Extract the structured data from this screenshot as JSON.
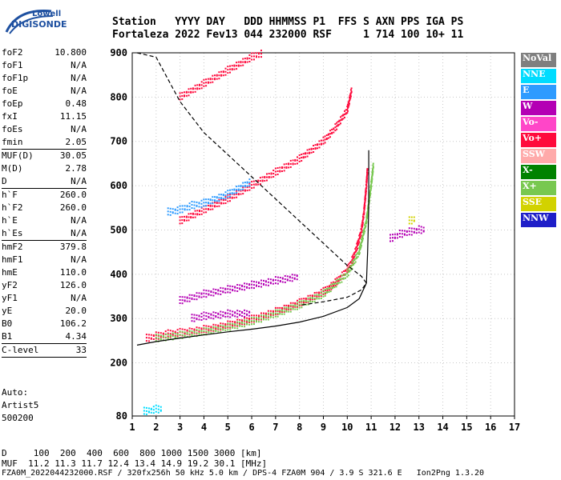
{
  "logo": {
    "line1": "Lowell",
    "line2": "DIGISONDE"
  },
  "header": {
    "line1": "Station   YYYY DAY   DDD HHMMSS P1  FFS S AXN PPS IGA PS",
    "line2": "Fortaleza 2022 Fev13 044 232000 RSF     1 714 100 10+ 11"
  },
  "params": [
    {
      "name": "foF2",
      "value": "10.800"
    },
    {
      "name": "foF1",
      "value": "N/A"
    },
    {
      "name": "foF1p",
      "value": "N/A"
    },
    {
      "name": "foE",
      "value": "N/A"
    },
    {
      "name": "foEp",
      "value": "0.48"
    },
    {
      "name": "fxI",
      "value": "11.15"
    },
    {
      "name": "foEs",
      "value": "N/A"
    },
    {
      "name": "fmin",
      "value": "2.05"
    },
    {
      "sep": true
    },
    {
      "name": "MUF(D)",
      "value": "30.05"
    },
    {
      "name": "M(D)",
      "value": "2.78"
    },
    {
      "name": "D",
      "value": "N/A"
    },
    {
      "sep": true
    },
    {
      "name": "h`F",
      "value": "260.0"
    },
    {
      "name": "h`F2",
      "value": "260.0"
    },
    {
      "name": "h`E",
      "value": "N/A"
    },
    {
      "name": "h`Es",
      "value": "N/A"
    },
    {
      "sep": true
    },
    {
      "name": "hmF2",
      "value": "379.8"
    },
    {
      "name": "hmF1",
      "value": "N/A"
    },
    {
      "name": "hmE",
      "value": "110.0"
    },
    {
      "name": "yF2",
      "value": "126.0"
    },
    {
      "name": "yF1",
      "value": "N/A"
    },
    {
      "name": "yE",
      "value": "20.0"
    },
    {
      "name": "B0",
      "value": "106.2"
    },
    {
      "name": "B1",
      "value": "4.34"
    },
    {
      "sep": true
    },
    {
      "name": "C-level",
      "value": "33"
    },
    {
      "sep": true
    }
  ],
  "auto": {
    "line1": "Auto:",
    "line2": "Artist5",
    "line3": "500200"
  },
  "legend": [
    {
      "label": "NoVal",
      "color": "#7f7f7f"
    },
    {
      "label": "NNE",
      "color": "#00dcff"
    },
    {
      "label": "E",
      "color": "#2d9bff"
    },
    {
      "label": "W",
      "color": "#b400b4"
    },
    {
      "label": "Vo-",
      "color": "#ff46c8"
    },
    {
      "label": "Vo+",
      "color": "#ff0a3c"
    },
    {
      "label": "SSW",
      "color": "#ffaaaa"
    },
    {
      "label": "X-",
      "color": "#008200"
    },
    {
      "label": "X+",
      "color": "#78c850"
    },
    {
      "label": "SSE",
      "color": "#d2d200"
    },
    {
      "label": "NNW",
      "color": "#1e1ec8"
    }
  ],
  "bottom": {
    "line1": "D     100  200  400  600  800 1000 1500 3000 [km]",
    "line2": "MUF  11.2 11.3 11.7 12.4 13.4 14.9 19.2 30.1 [MHz]",
    "line3": "FZA0M_2022044232000.RSF / 320fx256h 50 kHz 5.0 km / DPS-4 FZA0M 904 / 3.9 S 321.6 E   Ion2Png 1.3.20"
  },
  "chart_data": {
    "type": "scatter",
    "xlim": [
      1,
      17
    ],
    "ylim": [
      80,
      900
    ],
    "xticks": [
      "1",
      "2",
      "3",
      "4",
      "5",
      "6",
      "7",
      "8",
      "9",
      "10",
      "11",
      "12",
      "13",
      "14",
      "15",
      "16",
      "17"
    ],
    "yticks": [
      "80",
      "200",
      "300",
      "400",
      "500",
      "600",
      "700",
      "800",
      "900"
    ],
    "grid": true,
    "series": [
      {
        "kind": "trace",
        "color": "#ff0a3c",
        "points": [
          [
            1.6,
            255
          ],
          [
            2,
            260
          ],
          [
            2.5,
            265
          ],
          [
            3,
            268
          ],
          [
            4,
            275
          ],
          [
            5,
            285
          ],
          [
            6,
            298
          ],
          [
            7,
            315
          ],
          [
            8,
            335
          ],
          [
            9,
            360
          ],
          [
            9.5,
            380
          ],
          [
            10,
            410
          ],
          [
            10.2,
            430
          ],
          [
            10.4,
            460
          ],
          [
            10.6,
            500
          ],
          [
            10.7,
            540
          ],
          [
            10.8,
            600
          ],
          [
            10.85,
            640
          ]
        ]
      },
      {
        "kind": "trace",
        "color": "#78c850",
        "points": [
          [
            2,
            255
          ],
          [
            3,
            262
          ],
          [
            4,
            270
          ],
          [
            5,
            280
          ],
          [
            6,
            293
          ],
          [
            7,
            310
          ],
          [
            8,
            330
          ],
          [
            9,
            355
          ],
          [
            10,
            400
          ],
          [
            10.5,
            450
          ],
          [
            10.8,
            520
          ],
          [
            11,
            600
          ],
          [
            11.1,
            650
          ]
        ]
      },
      {
        "kind": "trace",
        "color": "#b400b4",
        "points": [
          [
            3,
            340
          ],
          [
            4,
            355
          ],
          [
            5,
            365
          ],
          [
            6,
            375
          ],
          [
            7,
            385
          ],
          [
            8,
            395
          ]
        ]
      },
      {
        "kind": "trace",
        "color": "#b400b4",
        "points": [
          [
            3.5,
            300
          ],
          [
            4,
            305
          ],
          [
            5,
            310
          ],
          [
            6,
            312
          ]
        ]
      },
      {
        "kind": "trace",
        "color": "#ff0a3c",
        "points": [
          [
            3,
            520
          ],
          [
            4,
            545
          ],
          [
            5,
            570
          ],
          [
            6,
            600
          ],
          [
            7,
            630
          ],
          [
            8,
            660
          ],
          [
            9,
            700
          ],
          [
            9.5,
            730
          ],
          [
            10,
            770
          ],
          [
            10.2,
            820
          ]
        ]
      },
      {
        "kind": "trace",
        "color": "#2d9bff",
        "points": [
          [
            2.5,
            540
          ],
          [
            3,
            545
          ],
          [
            3.5,
            555
          ],
          [
            4,
            560
          ],
          [
            5,
            580
          ],
          [
            6,
            610
          ]
        ]
      },
      {
        "kind": "trace",
        "color": "#ff0a3c",
        "points": [
          [
            3,
            800
          ],
          [
            4,
            830
          ],
          [
            5,
            860
          ],
          [
            6,
            890
          ],
          [
            6.5,
            900
          ]
        ]
      },
      {
        "kind": "trace",
        "color": "#b400b4",
        "points": [
          [
            11.8,
            480
          ],
          [
            12.2,
            490
          ],
          [
            12.6,
            495
          ],
          [
            13,
            500
          ],
          [
            13.3,
            500
          ]
        ]
      },
      {
        "kind": "trace",
        "color": "#d2d200",
        "points": [
          [
            12.6,
            520
          ],
          [
            12.9,
            525
          ]
        ]
      },
      {
        "kind": "trace",
        "color": "#00dcff",
        "points": [
          [
            1.5,
            90
          ],
          [
            2,
            95
          ],
          [
            2.3,
            95
          ]
        ]
      },
      {
        "kind": "line",
        "style": "solid",
        "points": [
          [
            1.2,
            240
          ],
          [
            2,
            248
          ],
          [
            3,
            256
          ],
          [
            4,
            263
          ],
          [
            5,
            270
          ],
          [
            6,
            276
          ],
          [
            7,
            283
          ],
          [
            8,
            292
          ],
          [
            9,
            305
          ],
          [
            10,
            325
          ],
          [
            10.5,
            345
          ],
          [
            10.8,
            380
          ],
          [
            10.85,
            450
          ],
          [
            10.9,
            550
          ],
          [
            10.9,
            680
          ]
        ]
      },
      {
        "kind": "line",
        "style": "dashed",
        "points": [
          [
            1.2,
            900
          ],
          [
            2,
            890
          ],
          [
            2.5,
            840
          ],
          [
            3,
            790
          ],
          [
            4,
            720
          ],
          [
            5,
            670
          ],
          [
            6,
            620
          ],
          [
            7,
            570
          ],
          [
            8,
            520
          ],
          [
            9,
            470
          ],
          [
            10,
            420
          ],
          [
            10.6,
            395
          ],
          [
            10.8,
            380
          ],
          [
            10.6,
            365
          ],
          [
            10,
            348
          ],
          [
            9,
            338
          ],
          [
            8,
            330
          ]
        ]
      }
    ]
  }
}
